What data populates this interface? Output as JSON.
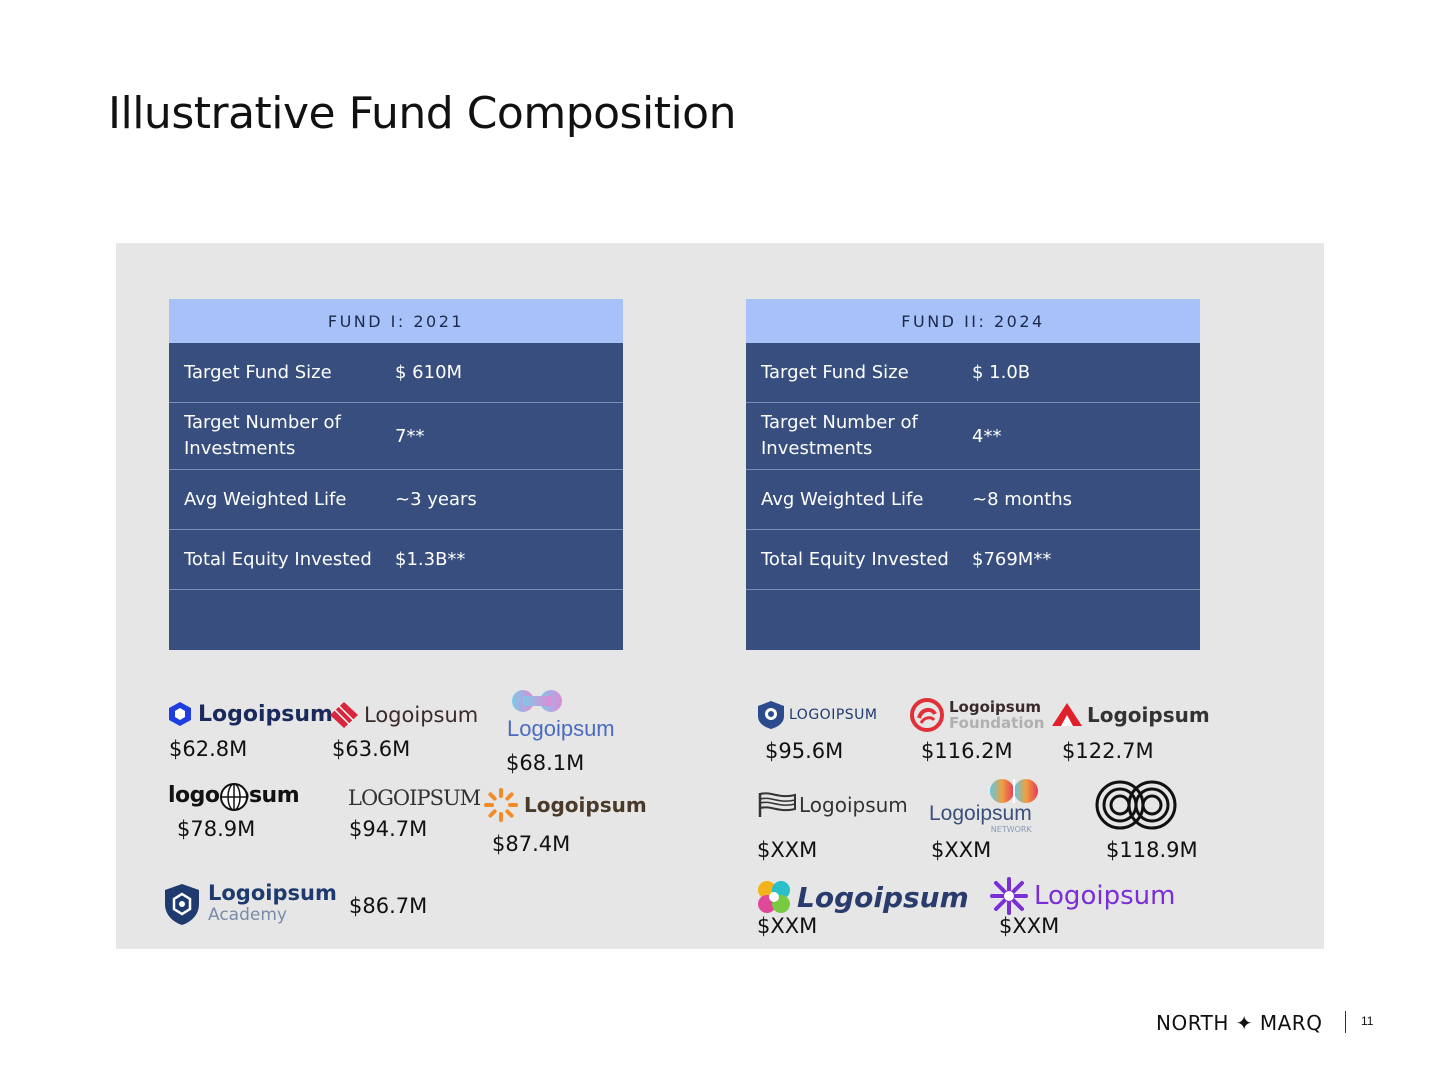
{
  "page": {
    "title": "Illustrative Fund Composition",
    "number": "11"
  },
  "footer": {
    "brand": "NORTH ✦ MARQ"
  },
  "funds": [
    {
      "header": "FUND I: 2021",
      "rows": [
        {
          "label": "Target Fund Size",
          "value": "$ 610M"
        },
        {
          "label": "Target Number of Investments",
          "value": "7**"
        },
        {
          "label": "Avg Weighted Life",
          "value": "~3 years"
        },
        {
          "label": "Total Equity Invested",
          "value": "$1.3B**"
        },
        {
          "label": "",
          "value": ""
        }
      ]
    },
    {
      "header": "FUND II: 2024",
      "rows": [
        {
          "label": "Target Fund Size",
          "value": "$ 1.0B"
        },
        {
          "label": "Target Number of Investments",
          "value": "4**"
        },
        {
          "label": "Avg Weighted Life",
          "value": "~8 months"
        },
        {
          "label": "Total Equity Invested",
          "value": "$769M**"
        },
        {
          "label": "",
          "value": ""
        }
      ]
    }
  ],
  "fund1_investments": [
    {
      "logo": "Logoipsum",
      "amount": "$62.8M",
      "color": "#1f3ee0"
    },
    {
      "logo": "Logoipsum",
      "amount": "$63.6M",
      "color": "#d7263d"
    },
    {
      "logo": "Logoipsum",
      "amount": "$68.1M",
      "color": "#4b6bbf"
    },
    {
      "logo": "logo ipsum",
      "amount": "$78.9M",
      "color": "#111111"
    },
    {
      "logo": "LOGOIPSUM",
      "amount": "$94.7M",
      "color": "#333333"
    },
    {
      "logo": "Logoipsum",
      "amount": "$87.4M",
      "color": "#f28c28"
    },
    {
      "logo": "Logoipsum",
      "logo_sub": "Academy",
      "amount": "$86.7M",
      "color": "#1e3a6e"
    }
  ],
  "fund2_investments": [
    {
      "logo": "LOGOIPSUM",
      "amount": "$95.6M",
      "color": "#1e3a6e"
    },
    {
      "logo": "Logoipsum",
      "logo_sub": "Foundation",
      "amount": "$116.2M",
      "color": "#e0303a"
    },
    {
      "logo": "Logoipsum",
      "amount": "$122.7M",
      "color": "#e0202a"
    },
    {
      "logo": "Logoipsum",
      "amount": "$XXM",
      "color": "#333333"
    },
    {
      "logo": "Logoipsum",
      "logo_sub": "NETWORK",
      "amount": "$XXM",
      "color": "#3a4f7a"
    },
    {
      "logo": "",
      "amount": "$118.9M",
      "color": "#111111"
    },
    {
      "logo": "Logoipsum",
      "amount": "$XXM",
      "color": "#2a3c6e"
    },
    {
      "logo": "Logoipsum",
      "amount": "$XXM",
      "color": "#7a2fd6"
    }
  ]
}
